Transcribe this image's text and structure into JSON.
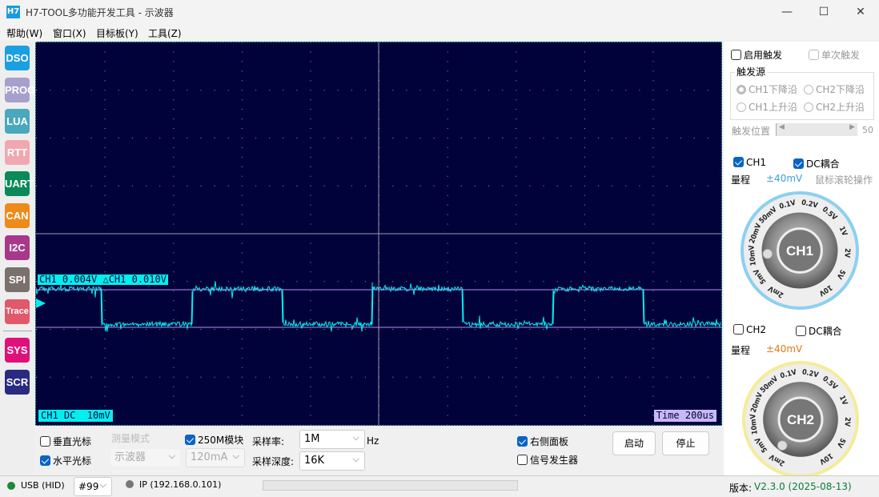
{
  "window": {
    "logo": "H7",
    "title": "H7-TOOL多功能开发工具 - 示波器",
    "minimize": "—",
    "maximize": "☐",
    "close": "✕"
  },
  "menu": [
    "帮助(W)",
    "窗口(X)",
    "目标板(Y)",
    "工具(Z)"
  ],
  "sidebar": [
    {
      "label": "DSO",
      "color": "#1aa0e0"
    },
    {
      "label": "PROG",
      "color": "#a8a0cc"
    },
    {
      "label": "LUA",
      "color": "#4aa8bc"
    },
    {
      "label": "RTT",
      "color": "#f0a8b0"
    },
    {
      "label": "UART",
      "color": "#0a8a58"
    },
    {
      "label": "CAN",
      "color": "#ee8a1a"
    },
    {
      "label": "I2C",
      "color": "#a8388a"
    },
    {
      "label": "SPI",
      "color": "#7a706c"
    },
    {
      "label": "Trace",
      "color": "#e0586a"
    },
    {
      "label": "SYS",
      "color": "#e0107a"
    },
    {
      "label": "SCR",
      "color": "#2a2a80"
    }
  ],
  "scope": {
    "cursor_readout": "CH1 0.004V  △CH1 0.010V",
    "channel_info": "CH1 DC  10mV",
    "timebase": "Time 200us",
    "trace_color": "#00f0f0",
    "cursor_color": "#b090f0",
    "bg": "#02023a"
  },
  "trigger": {
    "enable": "启用触发",
    "enable_checked": false,
    "single": "单次触发",
    "single_checked": false,
    "source_title": "触发源",
    "sources": [
      {
        "label": "CH1下降沿",
        "selected": true
      },
      {
        "label": "CH2下降沿",
        "selected": false
      },
      {
        "label": "CH1上升沿",
        "selected": false
      },
      {
        "label": "CH2上升沿",
        "selected": false
      }
    ],
    "position_label": "触发位置",
    "position_value": "50"
  },
  "ch1": {
    "enable": "CH1",
    "enabled": true,
    "dc": "DC耦合",
    "dc_checked": true,
    "range_label": "量程",
    "range_value": "±40mV",
    "hint": "鼠标滚轮操作",
    "knob": "CH1",
    "color": "#3aa0d8"
  },
  "ch2": {
    "enable": "CH2",
    "enabled": false,
    "dc": "DC耦合",
    "dc_checked": false,
    "range_label": "量程",
    "range_value": "±40mV",
    "knob": "CH2",
    "color": "#e07a10"
  },
  "knob_labels": [
    "2mV",
    "5mV",
    "10mV",
    "20mV",
    "50mV",
    "0.1V",
    "0.2V",
    "0.5V",
    "1V",
    "2V",
    "5V",
    "10V"
  ],
  "bottom": {
    "vcursor": "垂直光标",
    "vcursor_checked": false,
    "hcursor": "水平光标",
    "hcursor_checked": true,
    "measure_label": "测量模式",
    "measure_value": "示波器",
    "module": "250M模块",
    "module_checked": true,
    "current": "120mA",
    "rate_label": "采样率:",
    "rate_value": "1M",
    "rate_unit": "Hz",
    "depth_label": "采样深度:",
    "depth_value": "16K",
    "right_panel": "右侧面板",
    "right_panel_checked": true,
    "siggen": "信号发生器",
    "siggen_checked": false,
    "start": "启动",
    "stop": "停止"
  },
  "status": {
    "usb": "USB (HID)",
    "device": "#99",
    "ip": "IP (192.168.0.101)",
    "version_label": "版本:",
    "version": "V2.3.0 (2025-08-13)"
  }
}
